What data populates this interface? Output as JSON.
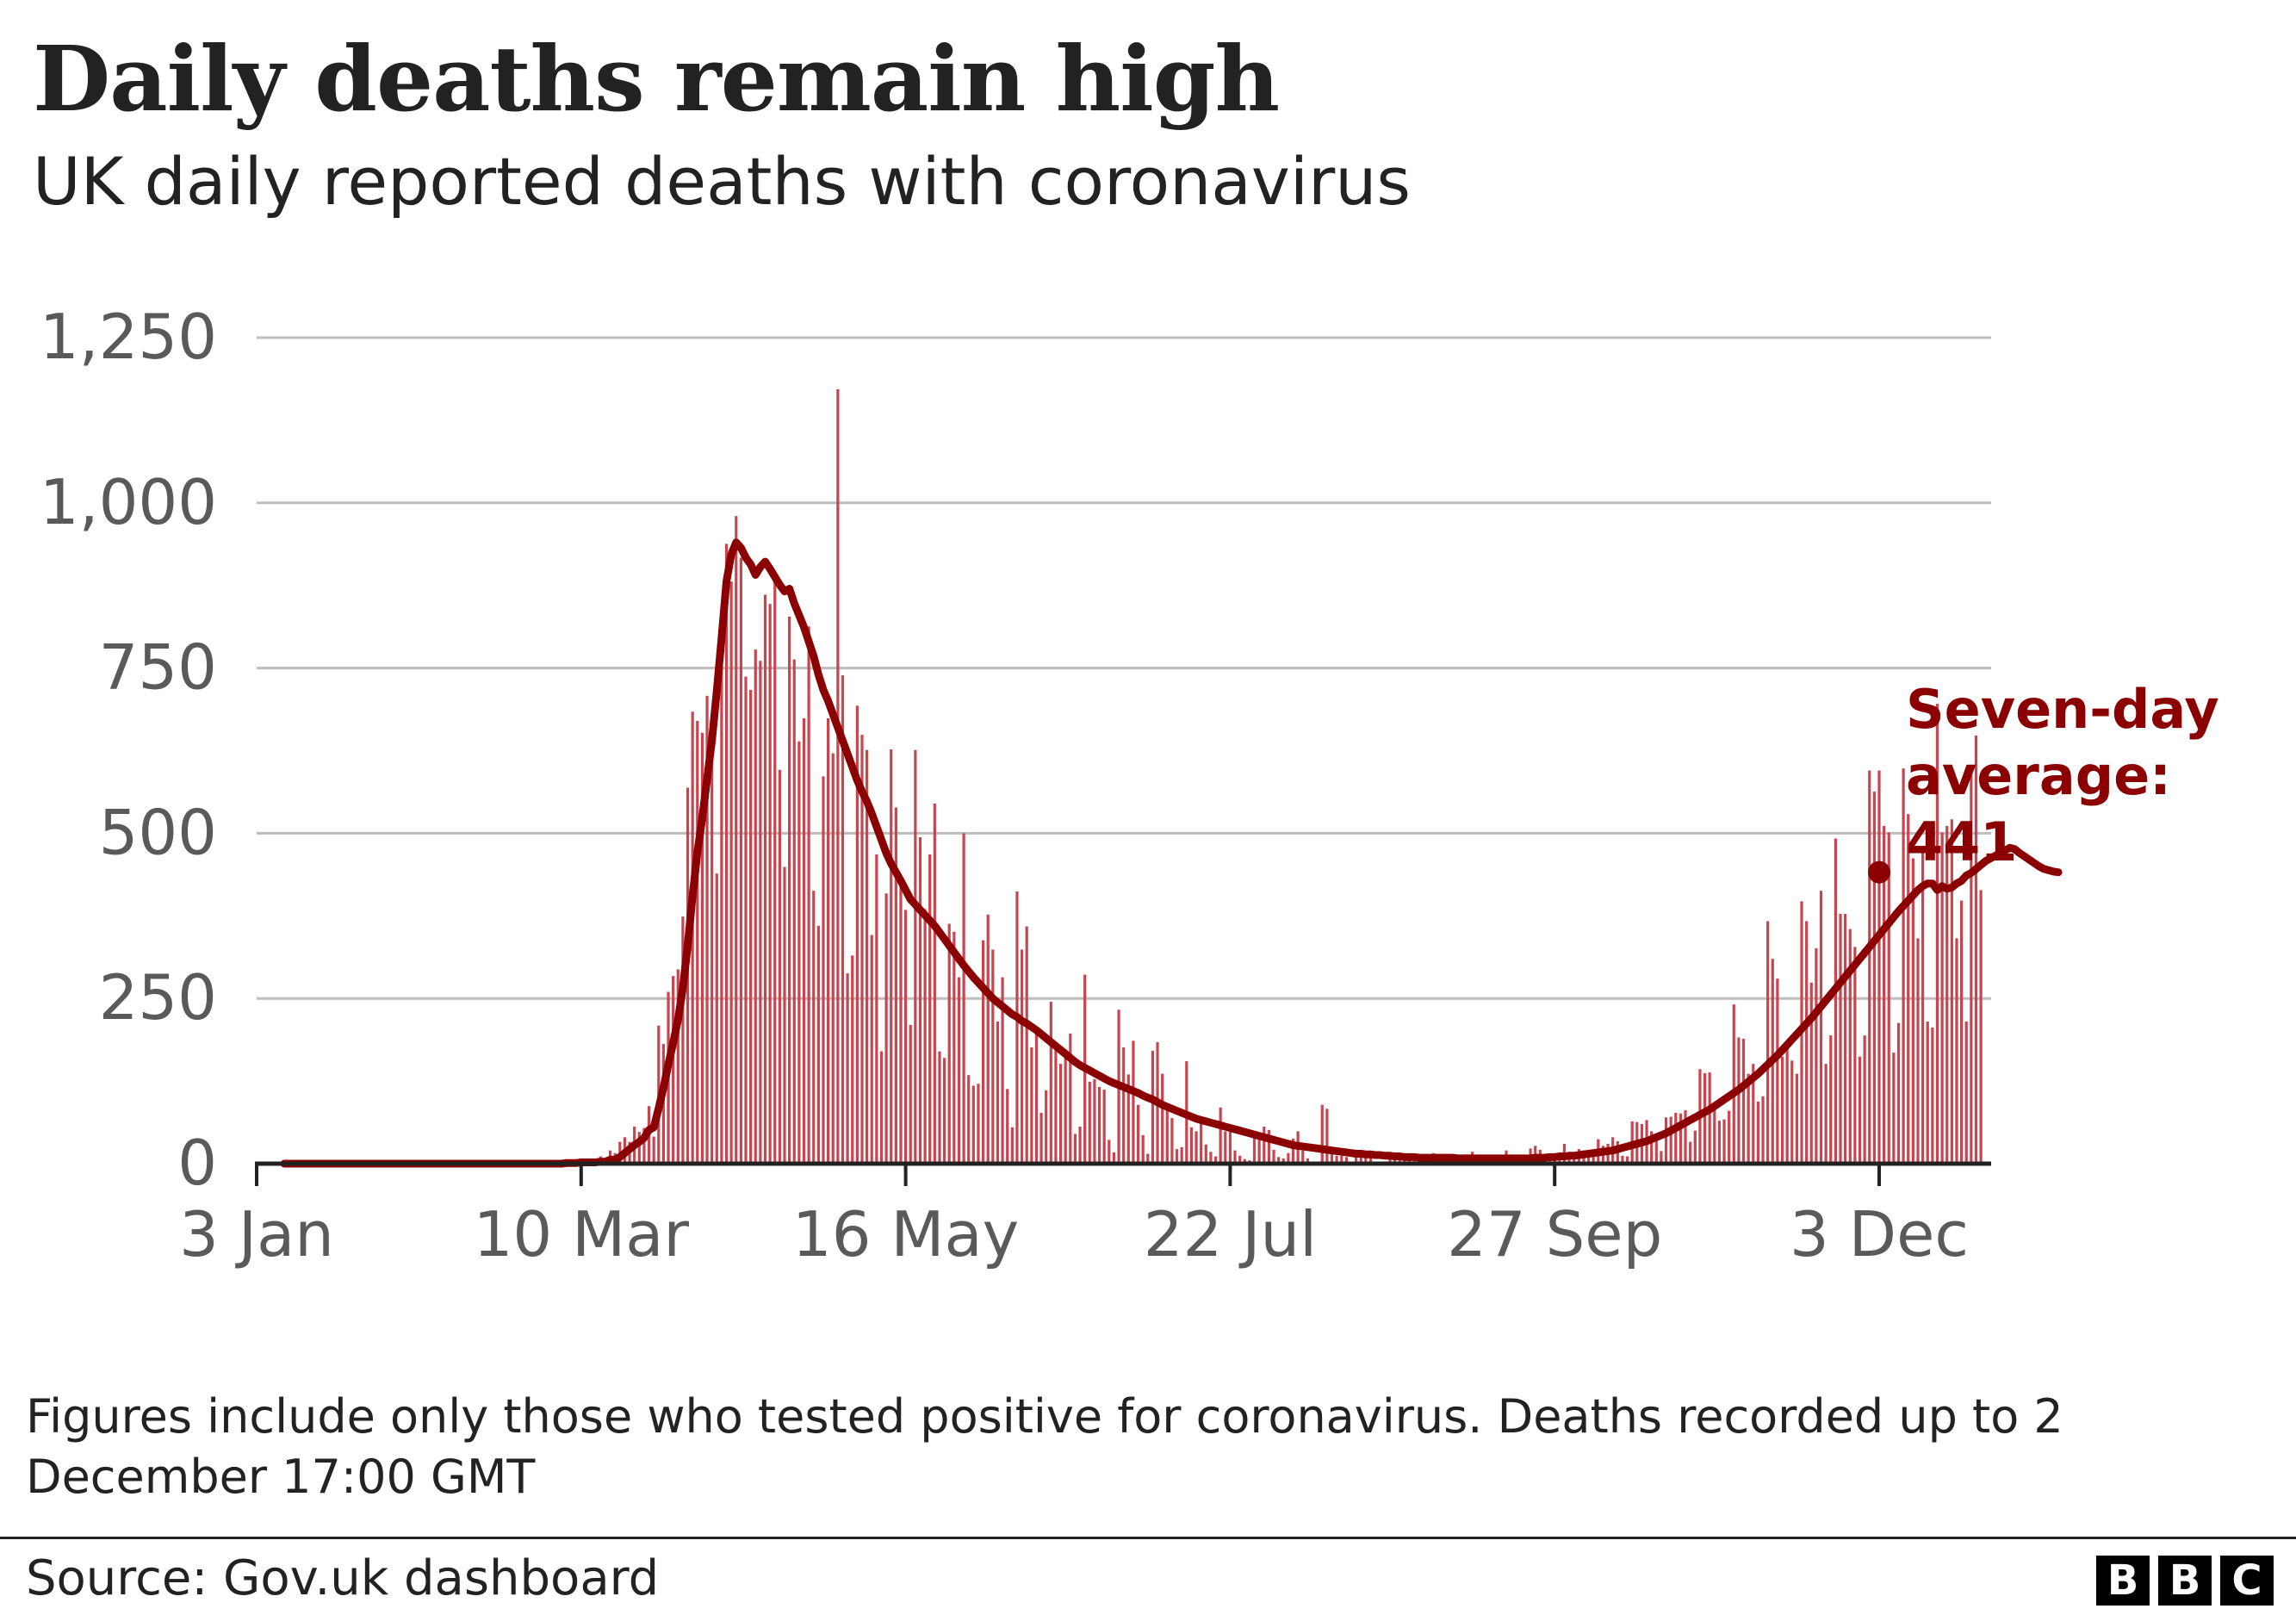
{
  "header": {
    "title": "Daily deaths remain high",
    "subtitle": "UK daily reported deaths with coronavirus"
  },
  "footer": {
    "note": "Figures include only those who tested positive for coronavirus. Deaths recorded up to 2 December 17:00 GMT",
    "source": "Source: Gov.uk dashboard",
    "logo_letters": [
      "B",
      "B",
      "C"
    ]
  },
  "colors": {
    "bar": "#c8454f",
    "average_line": "#8b0000",
    "grid": "#bdbdbd",
    "axis": "#222222",
    "tick_text": "#5a5a5a"
  },
  "chart_data": {
    "type": "bar",
    "title": "Daily deaths remain high",
    "subtitle": "UK daily reported deaths with coronavirus",
    "xlabel": "",
    "ylabel": "",
    "x_range": [
      "2020-01-03",
      "2020-12-22"
    ],
    "ylim": [
      0,
      1250
    ],
    "y_ticks": [
      0,
      250,
      500,
      750,
      1000,
      1250
    ],
    "y_tick_labels": [
      "0",
      "250",
      "500",
      "750",
      "1,000",
      "1,250"
    ],
    "x_ticks": [
      "2020-01-03",
      "2020-03-10",
      "2020-05-16",
      "2020-07-22",
      "2020-09-27",
      "2020-12-03"
    ],
    "x_tick_labels": [
      "3 Jan",
      "10 Mar",
      "16 May",
      "22 Jul",
      "27 Sep",
      "3 Dec"
    ],
    "grid": true,
    "bars": {
      "name": "Daily reported deaths",
      "start_date": "2020-03-06",
      "values": [
        1,
        1,
        0,
        2,
        3,
        2,
        5,
        1,
        11,
        1,
        20,
        16,
        33,
        40,
        33,
        56,
        48,
        54,
        87,
        41,
        209,
        181,
        260,
        284,
        294,
        374,
        569,
        684,
        670,
        652,
        708,
        621,
        439,
        786,
        938,
        881,
        980,
        917,
        737,
        717,
        778,
        761,
        861,
        847,
        888,
        596,
        449,
        828,
        763,
        639,
        674,
        813,
        413,
        360,
        586,
        674,
        621,
        1172,
        739,
        288,
        315,
        693,
        649,
        626,
        346,
        468,
        170,
        409,
        627,
        539,
        428,
        384,
        210,
        626,
        494,
        385,
        468,
        545,
        170,
        160,
        363,
        351,
        282,
        500,
        134,
        118,
        121,
        338,
        377,
        324,
        215,
        282,
        113,
        55,
        412,
        324,
        359,
        176,
        204,
        77,
        111,
        245,
        184,
        151,
        173,
        197,
        45,
        56,
        286,
        124,
        128,
        116,
        112,
        36,
        17,
        233,
        176,
        135,
        186,
        89,
        43,
        15,
        171,
        184,
        136,
        84,
        69,
        22,
        25,
        155,
        55,
        49,
        67,
        29,
        18,
        11,
        85,
        49,
        48,
        20,
        12,
        7,
        5,
        47,
        40,
        56,
        51,
        21,
        10,
        8,
        16,
        38,
        49,
        20,
        8,
        3,
        2,
        89,
        83,
        18,
        12,
        12,
        10,
        3,
        19,
        17,
        15,
        10,
        2,
        3,
        2,
        9,
        6,
        11,
        12,
        5,
        4,
        2,
        4,
        8,
        16,
        14,
        10,
        3,
        3,
        2,
        7,
        14,
        18,
        6,
        3,
        1,
        3,
        12,
        13,
        20,
        9,
        6,
        1,
        5,
        23,
        27,
        21,
        10,
        10,
        7,
        7,
        30,
        11,
        10,
        22,
        20,
        18,
        14,
        37,
        27,
        30,
        40,
        34,
        12,
        11,
        64,
        63,
        60,
        66,
        49,
        34,
        19,
        70,
        71,
        77,
        76,
        81,
        33,
        50,
        143,
        137,
        138,
        87,
        65,
        67,
        80,
        241,
        191,
        189,
        136,
        151,
        94,
        102,
        367,
        310,
        280,
        162,
        174,
        156,
        136,
        397,
        367,
        274,
        326,
        413,
        151,
        194,
        492,
        378,
        378,
        355,
        328,
        162,
        194,
        595,
        563,
        595,
        511,
        501,
        168,
        213,
        598,
        529,
        462,
        341,
        479,
        215,
        206,
        696,
        501,
        511,
        521,
        341,
        398,
        215,
        603,
        648,
        414
      ]
    },
    "series": [
      {
        "name": "Seven-day average",
        "start_date": "2020-03-06",
        "values": [
          0,
          1,
          1,
          1,
          2,
          2,
          2,
          2,
          3,
          3,
          6,
          6,
          10,
          16,
          22,
          28,
          33,
          39,
          51,
          55,
          84,
          115,
          150,
          183,
          218,
          266,
          330,
          405,
          471,
          523,
          582,
          640,
          715,
          796,
          881,
          922,
          940,
          932,
          917,
          907,
          891,
          903,
          911,
          900,
          888,
          876,
          866,
          870,
          848,
          830,
          812,
          790,
          768,
          740,
          717,
          700,
          680,
          660,
          640,
          620,
          600,
          580,
          563,
          548,
          530,
          510,
          490,
          470,
          454,
          441,
          428,
          414,
          400,
          392,
          384,
          376,
          368,
          360,
          350,
          340,
          330,
          320,
          310,
          300,
          291,
          282,
          274,
          266,
          258,
          250,
          244,
          238,
          232,
          226,
          222,
          216,
          212,
          207,
          202,
          196,
          190,
          184,
          178,
          172,
          166,
          160,
          154,
          149,
          145,
          141,
          137,
          133,
          129,
          125,
          122,
          119,
          116,
          113,
          110,
          107,
          103,
          100,
          97,
          93,
          89,
          86,
          83,
          80,
          77,
          74,
          71,
          68,
          66,
          64,
          62,
          60,
          58,
          56,
          54,
          52,
          50,
          48,
          46,
          44,
          42,
          40,
          38,
          36,
          34,
          32,
          30,
          28,
          27,
          26,
          25,
          24,
          23,
          22,
          21,
          20,
          19,
          18,
          17,
          16,
          15,
          15,
          14,
          14,
          13,
          13,
          12,
          12,
          11,
          11,
          10,
          10,
          10,
          9,
          9,
          9,
          9,
          9,
          9,
          9,
          9,
          8,
          8,
          8,
          8,
          8,
          8,
          8,
          8,
          8,
          8,
          8,
          8,
          8,
          8,
          8,
          8,
          9,
          9,
          9,
          10,
          10,
          11,
          11,
          12,
          12,
          13,
          14,
          15,
          16,
          17,
          18,
          19,
          20,
          22,
          24,
          26,
          28,
          30,
          32,
          34,
          37,
          40,
          43,
          46,
          50,
          54,
          58,
          62,
          66,
          70,
          74,
          78,
          82,
          87,
          92,
          97,
          102,
          107,
          112,
          118,
          124,
          130,
          136,
          143,
          150,
          157,
          164,
          172,
          180,
          188,
          196,
          204,
          212,
          220,
          229,
          238,
          247,
          256,
          265,
          274,
          283,
          292,
          301,
          310,
          319,
          328,
          337,
          346,
          355,
          364,
          373,
          382,
          390,
          398,
          406,
          414,
          420,
          424,
          424,
          414,
          420,
          416,
          418,
          424,
          428,
          436,
          440,
          446,
          452,
          458,
          462,
          466,
          470,
          474,
          478,
          476,
          470,
          465,
          460,
          455,
          450,
          446,
          444,
          442,
          441
        ]
      }
    ],
    "annotations": [
      {
        "text": [
          "Seven-day",
          "average:",
          "441"
        ],
        "date": "2020-12-03",
        "value": 441
      }
    ]
  }
}
